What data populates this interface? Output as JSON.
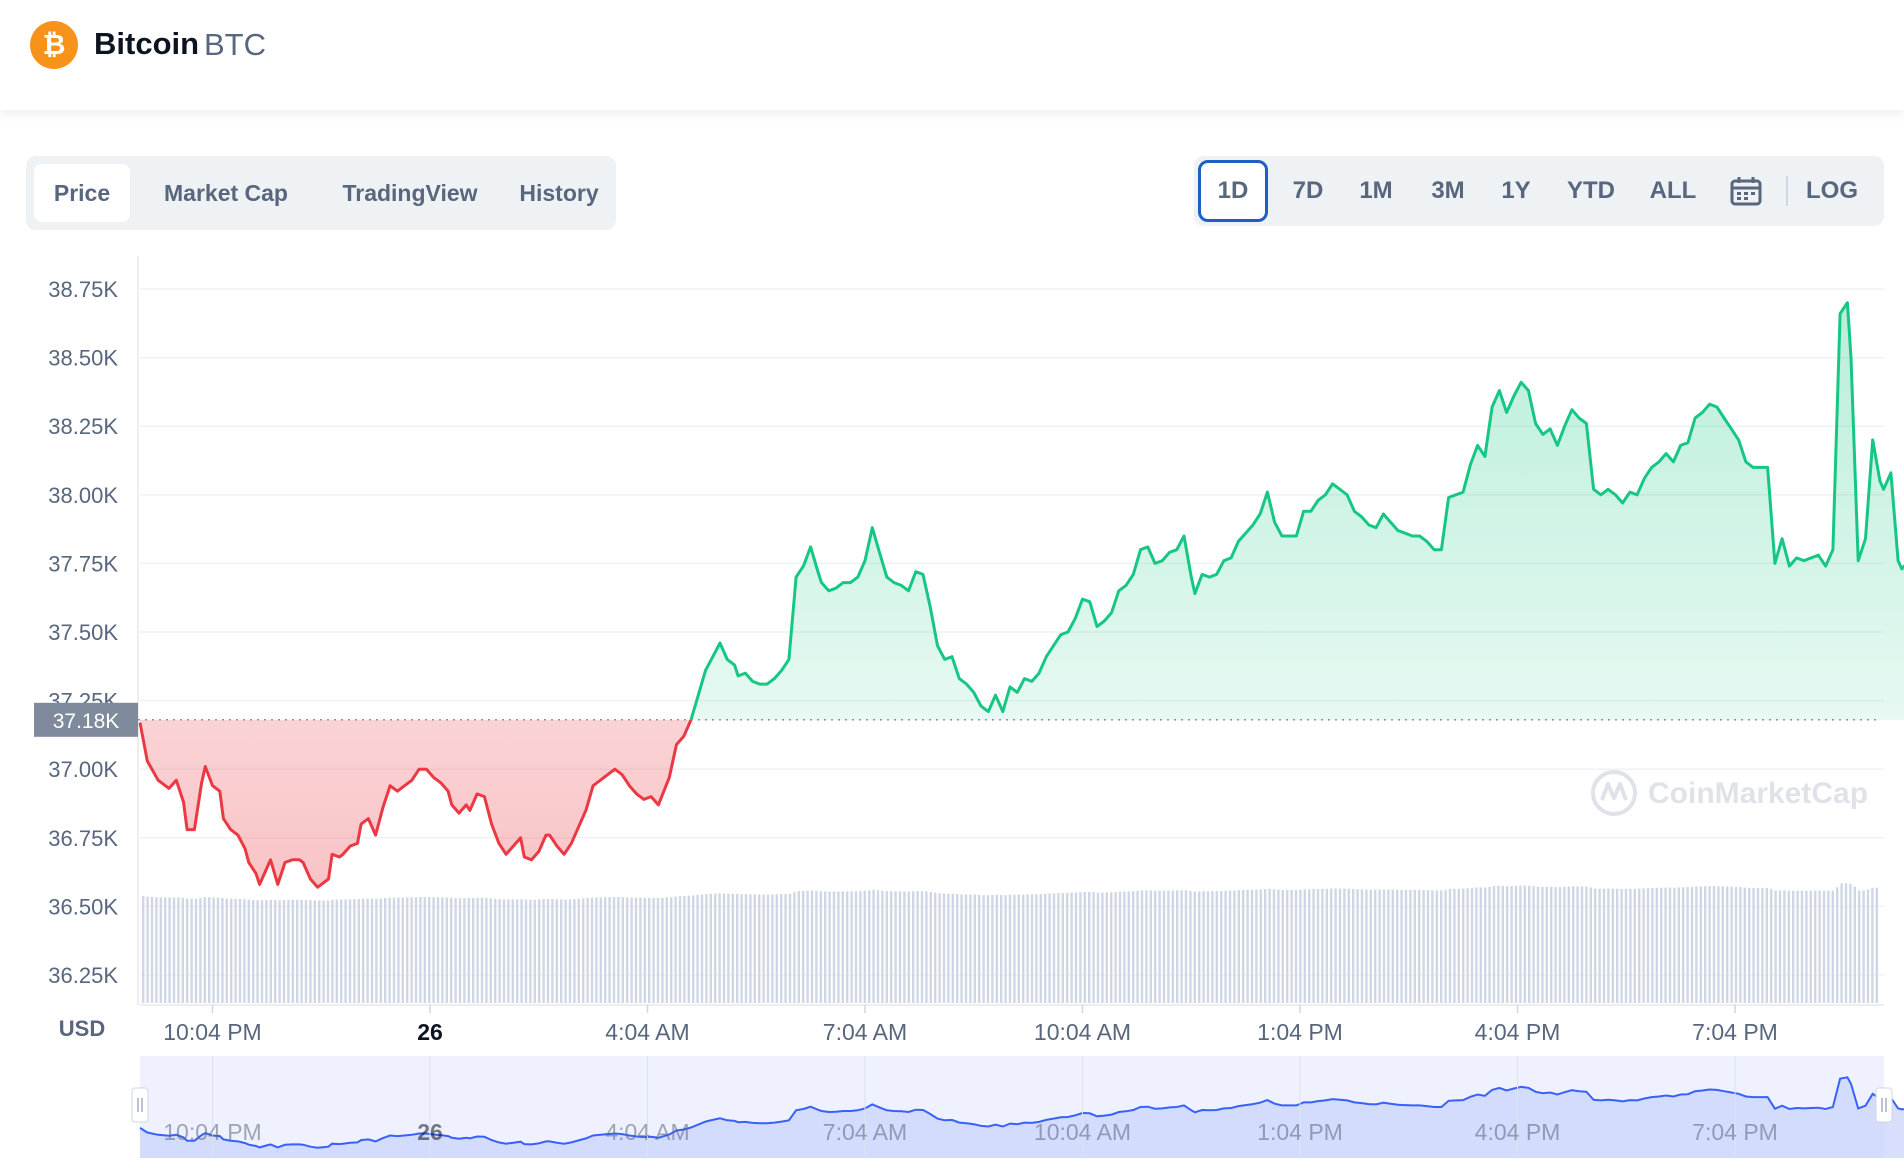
{
  "coin": {
    "logo_glyph": "₿",
    "name": "Bitcoin",
    "symbol": "BTC",
    "logo_color": "#f7931a"
  },
  "tabs": [
    {
      "label": "Price",
      "active": true
    },
    {
      "label": "Market Cap",
      "active": false
    },
    {
      "label": "TradingView",
      "active": false
    },
    {
      "label": "History",
      "active": false
    }
  ],
  "ranges": [
    {
      "label": "1D",
      "active": true
    },
    {
      "label": "7D",
      "active": false
    },
    {
      "label": "1M",
      "active": false
    },
    {
      "label": "3M",
      "active": false
    },
    {
      "label": "1Y",
      "active": false
    },
    {
      "label": "YTD",
      "active": false
    },
    {
      "label": "ALL",
      "active": false
    }
  ],
  "calendar_icon": "calendar-icon",
  "log_label": "LOG",
  "watermark": "CoinMarketCap",
  "currency_label": "USD",
  "colors": {
    "up": "#16c784",
    "down": "#ea3943",
    "volume": "#cfd6e4",
    "navigator": "#3861fb"
  },
  "chart_data": {
    "type": "line",
    "ylim": [
      36150,
      38900
    ],
    "yticks": [
      36250,
      36500,
      36750,
      37000,
      37250,
      37500,
      37750,
      38000,
      38250,
      38500,
      38750
    ],
    "ytick_labels": [
      "36.25K",
      "36.50K",
      "36.75K",
      "37.00K",
      "37.25K",
      "37.50K",
      "37.75K",
      "38.00K",
      "38.25K",
      "38.50K",
      "38.75K"
    ],
    "reference_price": 37180,
    "reference_label": "37.18K",
    "xlim": [
      0,
      24
    ],
    "xticks": [
      1.0,
      4.0,
      7.0,
      10.0,
      13.0,
      16.0,
      19.0,
      22.0
    ],
    "xtick_labels": [
      "10:04 PM",
      "26",
      "4:04 AM",
      "7:04 AM",
      "10:04 AM",
      "1:04 PM",
      "4:04 PM",
      "7:04 PM"
    ],
    "xtick_bold": [
      false,
      true,
      false,
      false,
      false,
      false,
      false,
      false
    ],
    "price_points": [
      [
        0.0,
        37170
      ],
      [
        0.1,
        37030
      ],
      [
        0.25,
        36960
      ],
      [
        0.4,
        36930
      ],
      [
        0.5,
        36960
      ],
      [
        0.6,
        36880
      ],
      [
        0.65,
        36780
      ],
      [
        0.75,
        36780
      ],
      [
        0.85,
        36950
      ],
      [
        0.9,
        37010
      ],
      [
        1.0,
        36940
      ],
      [
        1.1,
        36920
      ],
      [
        1.15,
        36820
      ],
      [
        1.25,
        36780
      ],
      [
        1.35,
        36760
      ],
      [
        1.45,
        36710
      ],
      [
        1.5,
        36660
      ],
      [
        1.6,
        36620
      ],
      [
        1.65,
        36580
      ],
      [
        1.75,
        36640
      ],
      [
        1.8,
        36670
      ],
      [
        1.9,
        36580
      ],
      [
        2.0,
        36660
      ],
      [
        2.1,
        36670
      ],
      [
        2.2,
        36670
      ],
      [
        2.25,
        36660
      ],
      [
        2.35,
        36600
      ],
      [
        2.45,
        36570
      ],
      [
        2.5,
        36580
      ],
      [
        2.6,
        36600
      ],
      [
        2.65,
        36690
      ],
      [
        2.75,
        36680
      ],
      [
        2.8,
        36690
      ],
      [
        2.9,
        36720
      ],
      [
        3.0,
        36730
      ],
      [
        3.05,
        36800
      ],
      [
        3.15,
        36820
      ],
      [
        3.25,
        36760
      ],
      [
        3.35,
        36860
      ],
      [
        3.45,
        36940
      ],
      [
        3.55,
        36920
      ],
      [
        3.65,
        36940
      ],
      [
        3.75,
        36960
      ],
      [
        3.85,
        37000
      ],
      [
        3.95,
        37000
      ],
      [
        4.05,
        36970
      ],
      [
        4.15,
        36950
      ],
      [
        4.25,
        36920
      ],
      [
        4.3,
        36870
      ],
      [
        4.4,
        36840
      ],
      [
        4.5,
        36870
      ],
      [
        4.55,
        36850
      ],
      [
        4.65,
        36910
      ],
      [
        4.75,
        36900
      ],
      [
        4.85,
        36800
      ],
      [
        4.95,
        36730
      ],
      [
        5.05,
        36690
      ],
      [
        5.15,
        36720
      ],
      [
        5.25,
        36750
      ],
      [
        5.3,
        36680
      ],
      [
        5.4,
        36670
      ],
      [
        5.5,
        36700
      ],
      [
        5.6,
        36760
      ],
      [
        5.65,
        36760
      ],
      [
        5.75,
        36720
      ],
      [
        5.85,
        36690
      ],
      [
        5.95,
        36730
      ],
      [
        6.05,
        36790
      ],
      [
        6.15,
        36850
      ],
      [
        6.25,
        36940
      ],
      [
        6.35,
        36960
      ],
      [
        6.45,
        36980
      ],
      [
        6.55,
        37000
      ],
      [
        6.65,
        36980
      ],
      [
        6.75,
        36940
      ],
      [
        6.85,
        36910
      ],
      [
        6.95,
        36890
      ],
      [
        7.05,
        36900
      ],
      [
        7.15,
        36870
      ],
      [
        7.3,
        36970
      ],
      [
        7.4,
        37090
      ],
      [
        7.5,
        37120
      ],
      [
        7.6,
        37180
      ],
      [
        7.7,
        37270
      ],
      [
        7.8,
        37360
      ],
      [
        7.9,
        37410
      ],
      [
        8.0,
        37460
      ],
      [
        8.1,
        37400
      ],
      [
        8.2,
        37380
      ],
      [
        8.25,
        37340
      ],
      [
        8.35,
        37350
      ],
      [
        8.45,
        37320
      ],
      [
        8.55,
        37310
      ],
      [
        8.65,
        37310
      ],
      [
        8.75,
        37330
      ],
      [
        8.85,
        37360
      ],
      [
        8.95,
        37400
      ],
      [
        9.05,
        37700
      ],
      [
        9.15,
        37740
      ],
      [
        9.25,
        37810
      ],
      [
        9.35,
        37720
      ],
      [
        9.4,
        37680
      ],
      [
        9.5,
        37650
      ],
      [
        9.6,
        37660
      ],
      [
        9.7,
        37680
      ],
      [
        9.8,
        37680
      ],
      [
        9.9,
        37700
      ],
      [
        10.0,
        37760
      ],
      [
        10.1,
        37880
      ],
      [
        10.2,
        37790
      ],
      [
        10.3,
        37700
      ],
      [
        10.4,
        37680
      ],
      [
        10.5,
        37670
      ],
      [
        10.6,
        37650
      ],
      [
        10.7,
        37720
      ],
      [
        10.8,
        37710
      ],
      [
        10.9,
        37590
      ],
      [
        11.0,
        37450
      ],
      [
        11.1,
        37400
      ],
      [
        11.2,
        37410
      ],
      [
        11.3,
        37330
      ],
      [
        11.4,
        37310
      ],
      [
        11.5,
        37280
      ],
      [
        11.6,
        37230
      ],
      [
        11.7,
        37210
      ],
      [
        11.8,
        37270
      ],
      [
        11.9,
        37210
      ],
      [
        12.0,
        37300
      ],
      [
        12.1,
        37280
      ],
      [
        12.2,
        37330
      ],
      [
        12.3,
        37320
      ],
      [
        12.4,
        37350
      ],
      [
        12.5,
        37410
      ],
      [
        12.6,
        37450
      ],
      [
        12.7,
        37490
      ],
      [
        12.8,
        37500
      ],
      [
        12.9,
        37550
      ],
      [
        13.0,
        37620
      ],
      [
        13.1,
        37610
      ],
      [
        13.2,
        37520
      ],
      [
        13.3,
        37540
      ],
      [
        13.4,
        37570
      ],
      [
        13.5,
        37650
      ],
      [
        13.6,
        37670
      ],
      [
        13.7,
        37710
      ],
      [
        13.8,
        37800
      ],
      [
        13.9,
        37810
      ],
      [
        14.0,
        37750
      ],
      [
        14.1,
        37760
      ],
      [
        14.2,
        37790
      ],
      [
        14.3,
        37800
      ],
      [
        14.4,
        37850
      ],
      [
        14.5,
        37700
      ],
      [
        14.55,
        37640
      ],
      [
        14.65,
        37710
      ],
      [
        14.75,
        37700
      ],
      [
        14.85,
        37710
      ],
      [
        14.95,
        37760
      ],
      [
        15.05,
        37770
      ],
      [
        15.15,
        37830
      ],
      [
        15.25,
        37860
      ],
      [
        15.35,
        37890
      ],
      [
        15.45,
        37930
      ],
      [
        15.55,
        38010
      ],
      [
        15.65,
        37900
      ],
      [
        15.75,
        37850
      ],
      [
        15.85,
        37850
      ],
      [
        15.95,
        37850
      ],
      [
        16.05,
        37940
      ],
      [
        16.15,
        37940
      ],
      [
        16.25,
        37980
      ],
      [
        16.35,
        38000
      ],
      [
        16.45,
        38040
      ],
      [
        16.55,
        38020
      ],
      [
        16.65,
        38000
      ],
      [
        16.75,
        37940
      ],
      [
        16.85,
        37920
      ],
      [
        16.95,
        37890
      ],
      [
        17.05,
        37880
      ],
      [
        17.15,
        37930
      ],
      [
        17.25,
        37900
      ],
      [
        17.35,
        37870
      ],
      [
        17.45,
        37860
      ],
      [
        17.55,
        37850
      ],
      [
        17.65,
        37850
      ],
      [
        17.75,
        37830
      ],
      [
        17.85,
        37800
      ],
      [
        17.95,
        37800
      ],
      [
        18.05,
        37990
      ],
      [
        18.15,
        38000
      ],
      [
        18.25,
        38010
      ],
      [
        18.35,
        38110
      ],
      [
        18.45,
        38180
      ],
      [
        18.55,
        38140
      ],
      [
        18.65,
        38320
      ],
      [
        18.75,
        38380
      ],
      [
        18.85,
        38300
      ],
      [
        18.95,
        38360
      ],
      [
        19.05,
        38410
      ],
      [
        19.15,
        38380
      ],
      [
        19.25,
        38260
      ],
      [
        19.35,
        38220
      ],
      [
        19.45,
        38240
      ],
      [
        19.55,
        38180
      ],
      [
        19.65,
        38250
      ],
      [
        19.75,
        38310
      ],
      [
        19.85,
        38280
      ],
      [
        19.95,
        38260
      ],
      [
        20.05,
        38020
      ],
      [
        20.15,
        38000
      ],
      [
        20.25,
        38020
      ],
      [
        20.35,
        38000
      ],
      [
        20.45,
        37970
      ],
      [
        20.55,
        38010
      ],
      [
        20.65,
        38000
      ],
      [
        20.75,
        38060
      ],
      [
        20.85,
        38100
      ],
      [
        20.95,
        38120
      ],
      [
        21.05,
        38150
      ],
      [
        21.15,
        38120
      ],
      [
        21.25,
        38180
      ],
      [
        21.35,
        38190
      ],
      [
        21.45,
        38280
      ],
      [
        21.55,
        38300
      ],
      [
        21.65,
        38330
      ],
      [
        21.75,
        38320
      ],
      [
        21.85,
        38280
      ],
      [
        21.95,
        38240
      ],
      [
        22.05,
        38200
      ],
      [
        22.15,
        38120
      ],
      [
        22.25,
        38100
      ],
      [
        22.35,
        38100
      ],
      [
        22.45,
        38100
      ],
      [
        22.55,
        37750
      ],
      [
        22.65,
        37840
      ],
      [
        22.75,
        37740
      ],
      [
        22.85,
        37770
      ],
      [
        22.95,
        37760
      ],
      [
        23.05,
        37770
      ],
      [
        23.15,
        37780
      ],
      [
        23.25,
        37740
      ],
      [
        23.35,
        37800
      ],
      [
        23.45,
        38660
      ],
      [
        23.55,
        38700
      ],
      [
        23.6,
        38500
      ],
      [
        23.7,
        37760
      ],
      [
        23.8,
        37840
      ],
      [
        23.9,
        38200
      ],
      [
        24.0,
        38050
      ],
      [
        24.05,
        38020
      ],
      [
        24.15,
        38080
      ],
      [
        24.25,
        37760
      ],
      [
        24.3,
        37730
      ],
      [
        24.4,
        37760
      ]
    ]
  }
}
